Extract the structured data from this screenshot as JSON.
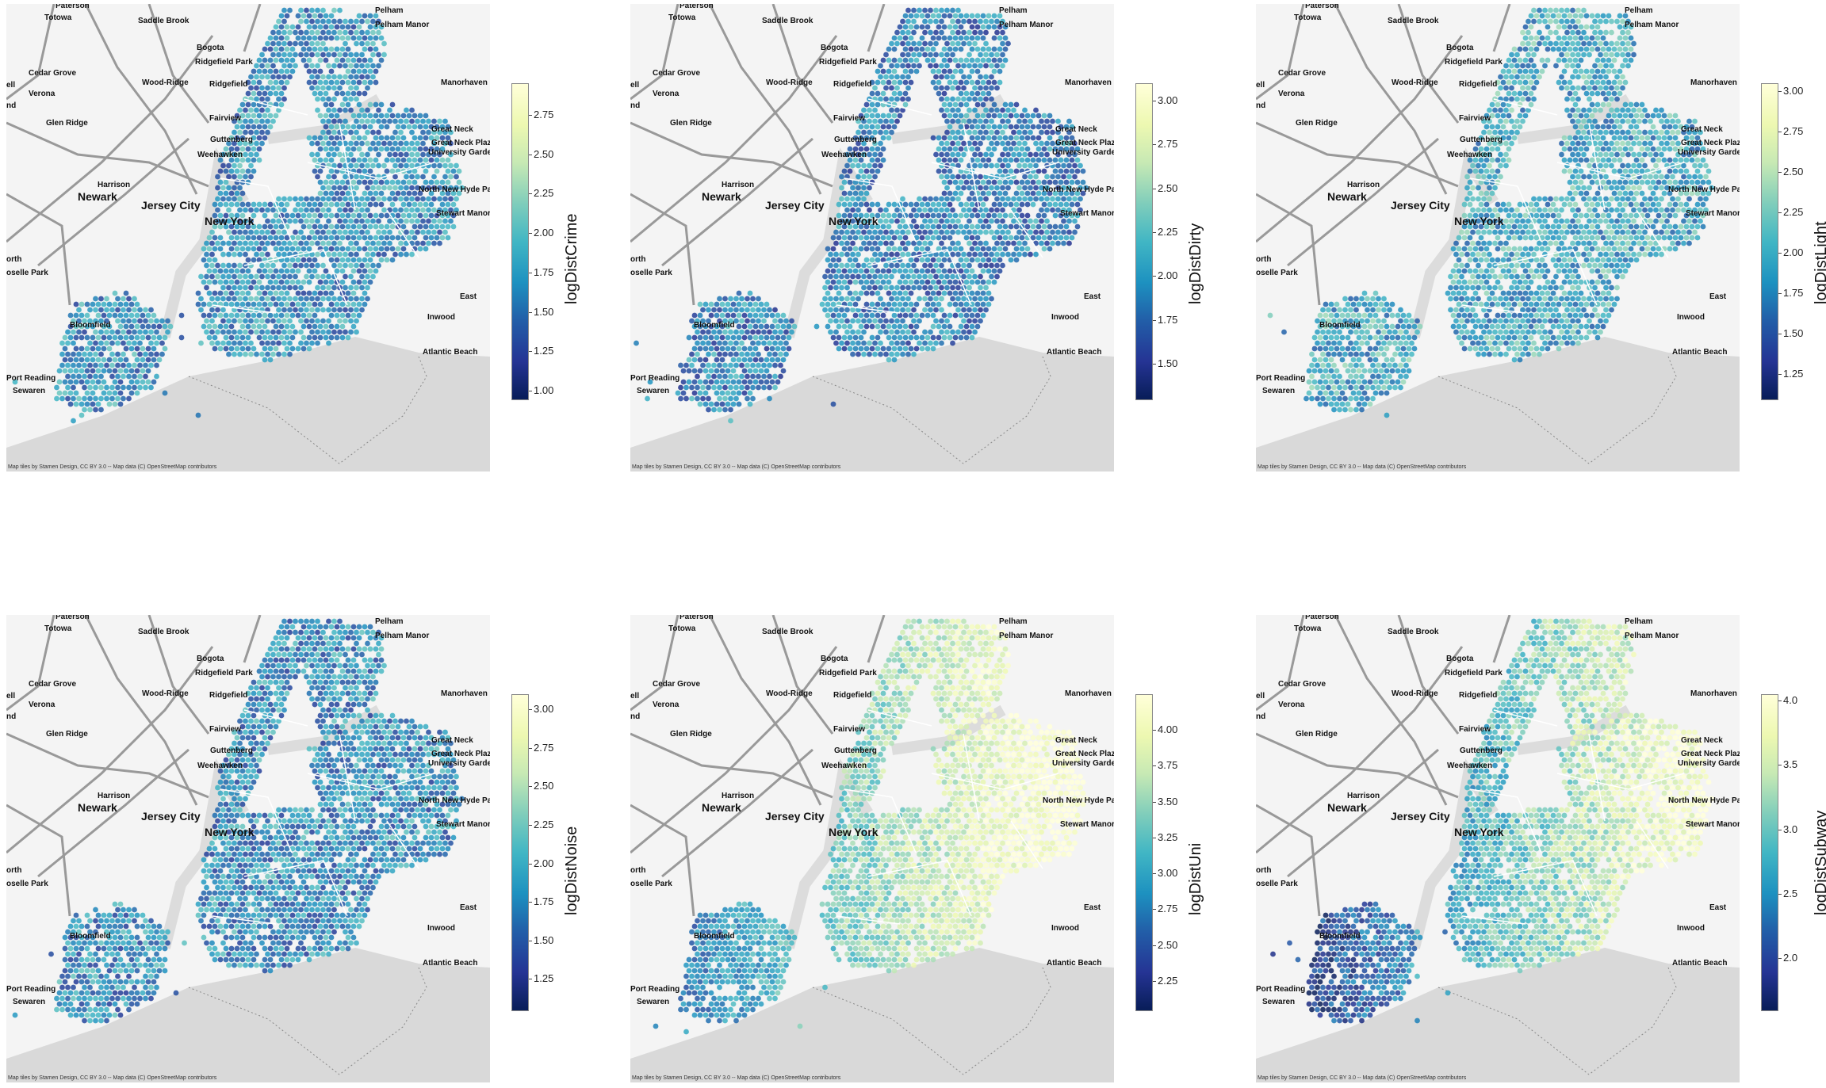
{
  "colormap": [
    "#081d58",
    "#253494",
    "#225ea8",
    "#1d91c0",
    "#41b6c4",
    "#7fcdbb",
    "#c7e9b4",
    "#edf8b1",
    "#ffffd9"
  ],
  "attribution": "Map tiles by Stamen Design, CC BY 3.0 -- Map data (C) OpenStreetMap contributors",
  "places": [
    {
      "name": "Paterson",
      "big": false
    },
    {
      "name": "Totowa",
      "big": false
    },
    {
      "name": "Saddle Brook",
      "big": false
    },
    {
      "name": "Pelham",
      "big": false
    },
    {
      "name": "Pelham Manor",
      "big": false
    },
    {
      "name": "Bogota",
      "big": false
    },
    {
      "name": "Cedar Grove",
      "big": false
    },
    {
      "name": "Ridgefield Park",
      "big": false
    },
    {
      "name": "Wood-Ridge",
      "big": false
    },
    {
      "name": "Manorhaven",
      "big": false
    },
    {
      "name": "ell",
      "big": false
    },
    {
      "name": "Verona",
      "big": false
    },
    {
      "name": "Ridgefield",
      "big": false
    },
    {
      "name": "nd",
      "big": false
    },
    {
      "name": "Fairview",
      "big": false
    },
    {
      "name": "Glen Ridge",
      "big": false
    },
    {
      "name": "Great Neck",
      "big": false
    },
    {
      "name": "Guttenberg",
      "big": false
    },
    {
      "name": "Great Neck Plaza",
      "big": false
    },
    {
      "name": "University Gardens",
      "big": false
    },
    {
      "name": "Weehawken",
      "big": false
    },
    {
      "name": "Harrison",
      "big": false
    },
    {
      "name": "Newark",
      "big": true
    },
    {
      "name": "North New Hyde Park",
      "big": false
    },
    {
      "name": "Jersey City",
      "big": true
    },
    {
      "name": "New York",
      "big": true
    },
    {
      "name": "Stewart Manor",
      "big": false
    },
    {
      "name": "orth",
      "big": false
    },
    {
      "name": "oselle Park",
      "big": false
    },
    {
      "name": "East",
      "big": false
    },
    {
      "name": "Inwood",
      "big": false
    },
    {
      "name": "Bloomfield",
      "big": false
    },
    {
      "name": "Atlantic Beach",
      "big": false
    },
    {
      "name": "Port Reading",
      "big": false
    },
    {
      "name": "Sewaren",
      "big": false
    }
  ],
  "chart_data": [
    {
      "type": "heatmap",
      "title": "",
      "colorbar_label": "logDistCrime",
      "clim": [
        0.95,
        2.95
      ],
      "ticks": [
        "1.00",
        "1.25",
        "1.50",
        "1.75",
        "2.00",
        "2.25",
        "2.50",
        "2.75"
      ],
      "tick_values": [
        1.0,
        1.25,
        1.5,
        1.75,
        2.0,
        2.25,
        2.5,
        2.75
      ],
      "median": 1.7
    },
    {
      "type": "heatmap",
      "title": "",
      "colorbar_label": "logDistDirty",
      "clim": [
        1.3,
        3.1
      ],
      "ticks": [
        "1.50",
        "1.75",
        "2.00",
        "2.25",
        "2.50",
        "2.75",
        "3.00"
      ],
      "tick_values": [
        1.5,
        1.75,
        2.0,
        2.25,
        2.5,
        2.75,
        3.0
      ],
      "median": 1.9
    },
    {
      "type": "heatmap",
      "title": "",
      "colorbar_label": "logDistLight",
      "clim": [
        1.1,
        3.05
      ],
      "ticks": [
        "1.25",
        "1.50",
        "1.75",
        "2.00",
        "2.25",
        "2.50",
        "2.75",
        "3.00"
      ],
      "tick_values": [
        1.25,
        1.5,
        1.75,
        2.0,
        2.25,
        2.5,
        2.75,
        3.0
      ],
      "median": 2.0
    },
    {
      "type": "heatmap",
      "title": "",
      "colorbar_label": "logDistNoise",
      "clim": [
        1.05,
        3.1
      ],
      "ticks": [
        "1.25",
        "1.50",
        "1.75",
        "2.00",
        "2.25",
        "2.50",
        "2.75",
        "3.00"
      ],
      "tick_values": [
        1.25,
        1.5,
        1.75,
        2.0,
        2.25,
        2.5,
        2.75,
        3.0
      ],
      "median": 1.8
    },
    {
      "type": "heatmap",
      "title": "",
      "colorbar_label": "logDistUni",
      "clim": [
        2.05,
        4.25
      ],
      "ticks": [
        "2.25",
        "2.50",
        "2.75",
        "3.00",
        "3.25",
        "3.50",
        "3.75",
        "4.00"
      ],
      "tick_values": [
        2.25,
        2.5,
        2.75,
        3.0,
        3.25,
        3.5,
        3.75,
        4.0
      ],
      "median": 3.3
    },
    {
      "type": "heatmap",
      "title": "",
      "colorbar_label": "logDistSubway",
      "clim": [
        1.6,
        4.05
      ],
      "ticks": [
        "2.0",
        "2.5",
        "3.0",
        "3.5",
        "4.0"
      ],
      "tick_values": [
        2.0,
        2.5,
        3.0,
        3.5,
        4.0
      ],
      "median": 2.8
    }
  ]
}
